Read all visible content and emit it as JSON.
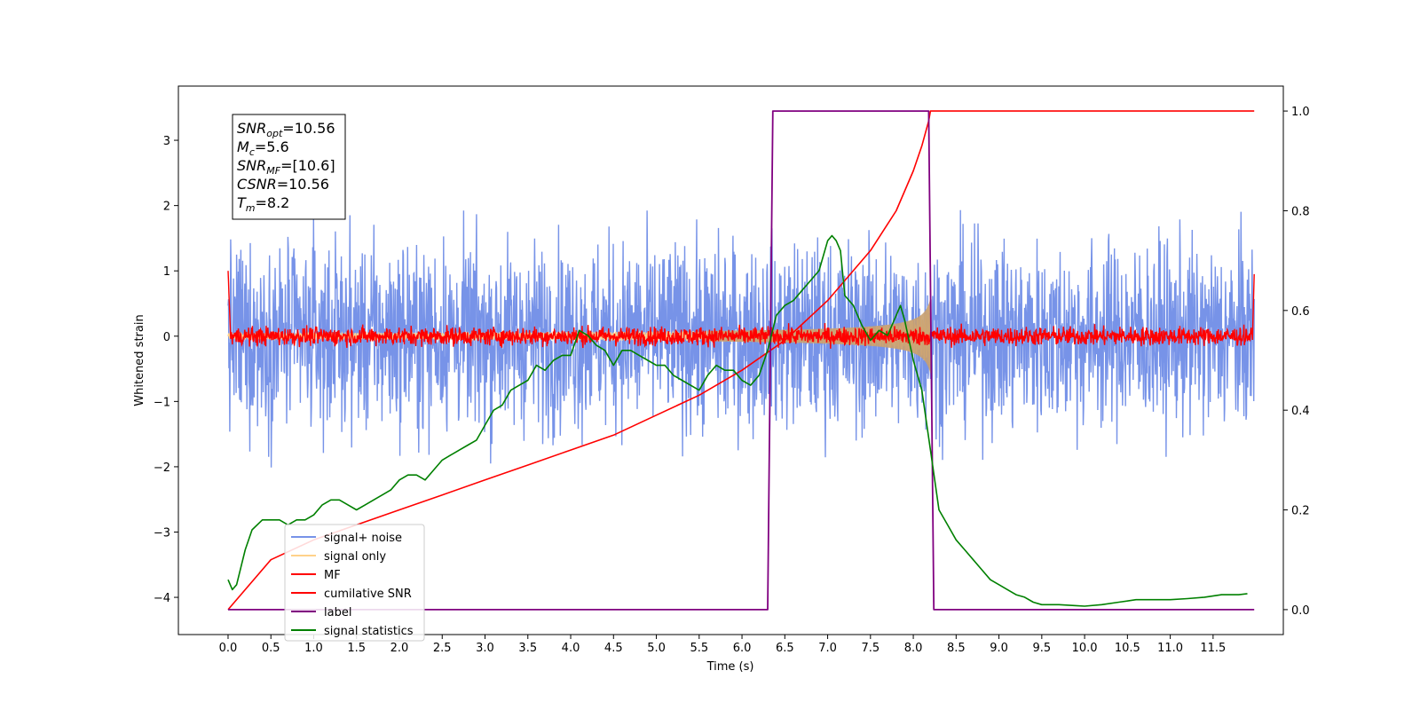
{
  "chart_data": {
    "type": "line",
    "title": "",
    "xlabel": "Time (s)",
    "ylabel": "Whitened strain",
    "ylabel_right": "",
    "xlim": [
      -0.58,
      12.32
    ],
    "ylim": [
      -4.57,
      3.83
    ],
    "ylim_right": [
      -0.05,
      1.05
    ],
    "xticks": [
      "0.0",
      "0.5",
      "1.0",
      "1.5",
      "2.0",
      "2.5",
      "3.0",
      "3.5",
      "4.0",
      "4.5",
      "5.0",
      "5.5",
      "6.0",
      "6.5",
      "7.0",
      "7.5",
      "8.0",
      "8.5",
      "9.0",
      "9.5",
      "10.0",
      "10.5",
      "11.0",
      "11.5"
    ],
    "yticks_left": [
      "3",
      "2",
      "1",
      "0",
      "−1",
      "−2",
      "−3",
      "−4"
    ],
    "yticks_right": [
      "1.0",
      "0.8",
      "0.6",
      "0.4",
      "0.2",
      "0.0"
    ],
    "grid": false,
    "legend_position": "lower-left",
    "legend": [
      {
        "name": "signal+ noise",
        "color": "#7793e8"
      },
      {
        "name": "signal only",
        "color": "#ffd28a"
      },
      {
        "name": "MF",
        "color": "#ff0000"
      },
      {
        "name": "cumilative SNR",
        "color": "#ff0000"
      },
      {
        "name": "label",
        "color": "#800080"
      },
      {
        "name": "signal statistics",
        "color": "#008000"
      }
    ],
    "annotation": [
      {
        "base": "SNR",
        "sub": "opt",
        "rest": "=10.56"
      },
      {
        "base": "M",
        "sub": "c",
        "rest": "=5.6"
      },
      {
        "base": "SNR",
        "sub": "MF",
        "rest": "=[10.6]"
      },
      {
        "base": "CSNR",
        "sub": "",
        "rest": "=10.56"
      },
      {
        "base": "T",
        "sub": "m",
        "rest": "=8.2"
      }
    ],
    "series": [
      {
        "name": "signal+ noise",
        "axis": "left",
        "color": "#7793e8",
        "kind": "noise",
        "x_range": [
          0.0,
          11.98
        ],
        "amplitude": 1.0
      },
      {
        "name": "signal only",
        "axis": "left",
        "color": "#ffd28a",
        "kind": "chirp",
        "x_range": [
          0.0,
          8.2
        ],
        "amplitude_end": 0.8
      },
      {
        "name": "MF",
        "axis": "left",
        "color": "#ff0000",
        "kind": "noise",
        "x_range": [
          0.0,
          11.98
        ],
        "amplitude": 0.1
      },
      {
        "name": "cumilative SNR",
        "axis": "right",
        "color": "#ff0000",
        "x": [
          0.0,
          0.5,
          1.0,
          1.5,
          2.0,
          2.5,
          3.0,
          3.5,
          4.0,
          4.5,
          5.0,
          5.5,
          6.0,
          6.5,
          7.0,
          7.5,
          7.8,
          8.0,
          8.1,
          8.18,
          8.2,
          11.98
        ],
        "y": [
          0.0,
          0.1,
          0.14,
          0.17,
          0.2,
          0.23,
          0.26,
          0.29,
          0.32,
          0.35,
          0.39,
          0.43,
          0.48,
          0.54,
          0.62,
          0.72,
          0.8,
          0.88,
          0.93,
          0.98,
          1.0,
          1.0
        ]
      },
      {
        "name": "label",
        "axis": "right",
        "color": "#800080",
        "x": [
          0.0,
          6.3,
          6.36,
          8.18,
          8.24,
          11.98
        ],
        "y": [
          0.0,
          0.0,
          1.0,
          1.0,
          0.0,
          0.0
        ]
      },
      {
        "name": "signal statistics",
        "axis": "right",
        "color": "#008000",
        "x": [
          0.0,
          0.05,
          0.1,
          0.2,
          0.28,
          0.4,
          0.5,
          0.6,
          0.7,
          0.8,
          0.9,
          1.0,
          1.1,
          1.2,
          1.3,
          1.4,
          1.5,
          1.6,
          1.7,
          1.8,
          1.9,
          2.0,
          2.1,
          2.2,
          2.3,
          2.4,
          2.5,
          2.6,
          2.7,
          2.8,
          2.9,
          3.0,
          3.1,
          3.2,
          3.3,
          3.4,
          3.5,
          3.6,
          3.7,
          3.8,
          3.9,
          4.0,
          4.1,
          4.2,
          4.3,
          4.4,
          4.5,
          4.6,
          4.7,
          4.8,
          4.9,
          5.0,
          5.1,
          5.2,
          5.3,
          5.4,
          5.5,
          5.6,
          5.7,
          5.8,
          5.9,
          6.0,
          6.1,
          6.2,
          6.3,
          6.4,
          6.5,
          6.6,
          6.7,
          6.8,
          6.9,
          7.0,
          7.05,
          7.1,
          7.15,
          7.2,
          7.3,
          7.4,
          7.5,
          7.6,
          7.7,
          7.8,
          7.85,
          7.9,
          8.0,
          8.1,
          8.2,
          8.3,
          8.4,
          8.5,
          8.6,
          8.7,
          8.8,
          8.9,
          9.0,
          9.1,
          9.2,
          9.3,
          9.4,
          9.5,
          9.7,
          9.9,
          10.0,
          10.2,
          10.4,
          10.6,
          10.8,
          11.0,
          11.2,
          11.4,
          11.6,
          11.8,
          11.9
        ],
        "y": [
          0.06,
          0.04,
          0.05,
          0.12,
          0.16,
          0.18,
          0.18,
          0.18,
          0.17,
          0.18,
          0.18,
          0.19,
          0.21,
          0.22,
          0.22,
          0.21,
          0.2,
          0.21,
          0.22,
          0.23,
          0.24,
          0.26,
          0.27,
          0.27,
          0.26,
          0.28,
          0.3,
          0.31,
          0.32,
          0.33,
          0.34,
          0.37,
          0.4,
          0.41,
          0.44,
          0.45,
          0.46,
          0.49,
          0.48,
          0.5,
          0.51,
          0.51,
          0.56,
          0.55,
          0.53,
          0.52,
          0.49,
          0.52,
          0.52,
          0.51,
          0.5,
          0.49,
          0.49,
          0.47,
          0.46,
          0.45,
          0.44,
          0.47,
          0.49,
          0.48,
          0.48,
          0.46,
          0.45,
          0.47,
          0.52,
          0.59,
          0.61,
          0.62,
          0.64,
          0.66,
          0.68,
          0.74,
          0.75,
          0.74,
          0.72,
          0.63,
          0.61,
          0.57,
          0.54,
          0.56,
          0.55,
          0.59,
          0.61,
          0.58,
          0.5,
          0.44,
          0.32,
          0.2,
          0.17,
          0.14,
          0.12,
          0.1,
          0.08,
          0.06,
          0.05,
          0.04,
          0.03,
          0.025,
          0.015,
          0.01,
          0.01,
          0.008,
          0.007,
          0.01,
          0.015,
          0.02,
          0.02,
          0.02,
          0.022,
          0.025,
          0.03,
          0.03,
          0.032
        ]
      }
    ]
  }
}
